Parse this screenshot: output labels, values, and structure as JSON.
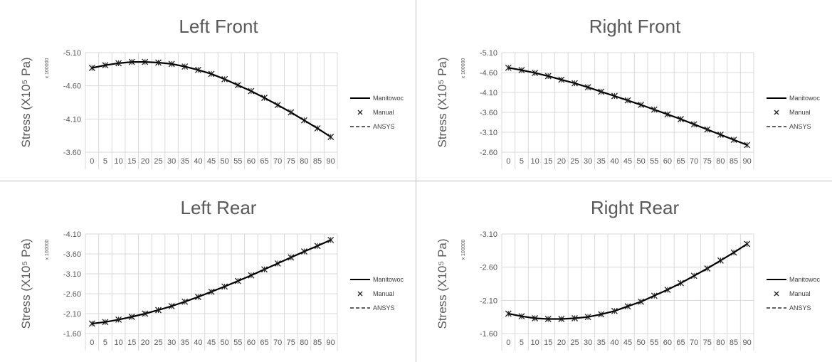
{
  "chart_data": [
    {
      "type": "line",
      "title": "Left Front",
      "ylabel": "Stress (X10⁵ Pa)",
      "display_multiplier": "x 100000",
      "x": [
        0,
        5,
        10,
        15,
        20,
        25,
        30,
        35,
        40,
        45,
        50,
        55,
        60,
        65,
        70,
        75,
        80,
        85,
        90
      ],
      "ylim": [
        -3.6,
        -5.1
      ],
      "yticks": [
        "-5.10",
        "-4.60",
        "-4.10",
        "-3.60"
      ],
      "series": [
        {
          "name": "Manitowoc",
          "style": "solid",
          "values": [
            -4.87,
            -4.91,
            -4.94,
            -4.96,
            -4.96,
            -4.95,
            -4.93,
            -4.89,
            -4.84,
            -4.78,
            -4.7,
            -4.61,
            -4.52,
            -4.42,
            -4.31,
            -4.2,
            -4.08,
            -3.96,
            -3.83
          ]
        },
        {
          "name": "Manual",
          "style": "marker",
          "values": [
            -4.87,
            -4.91,
            -4.94,
            -4.96,
            -4.96,
            -4.95,
            -4.93,
            -4.89,
            -4.84,
            -4.78,
            -4.7,
            -4.61,
            -4.52,
            -4.42,
            -4.31,
            -4.2,
            -4.08,
            -3.96,
            -3.83
          ]
        },
        {
          "name": "ANSYS",
          "style": "dashed",
          "values": [
            -4.87,
            -4.91,
            -4.94,
            -4.96,
            -4.96,
            -4.95,
            -4.93,
            -4.89,
            -4.84,
            -4.78,
            -4.7,
            -4.61,
            -4.52,
            -4.42,
            -4.31,
            -4.2,
            -4.08,
            -3.96,
            -3.83
          ]
        }
      ]
    },
    {
      "type": "line",
      "title": "Right Front",
      "ylabel": "Stress (X10⁵ Pa)",
      "display_multiplier": "x 100000",
      "x": [
        0,
        5,
        10,
        15,
        20,
        25,
        30,
        35,
        40,
        45,
        50,
        55,
        60,
        65,
        70,
        75,
        80,
        85,
        90
      ],
      "ylim": [
        -2.6,
        -5.1
      ],
      "yticks": [
        "-5.10",
        "-4.60",
        "-4.10",
        "-3.60",
        "-3.10",
        "-2.60"
      ],
      "series": [
        {
          "name": "Manitowoc",
          "style": "solid",
          "values": [
            -4.72,
            -4.66,
            -4.59,
            -4.51,
            -4.42,
            -4.33,
            -4.23,
            -4.12,
            -4.01,
            -3.9,
            -3.79,
            -3.67,
            -3.55,
            -3.43,
            -3.3,
            -3.17,
            -3.04,
            -2.91,
            -2.78
          ]
        },
        {
          "name": "Manual",
          "style": "marker",
          "values": [
            -4.72,
            -4.66,
            -4.59,
            -4.51,
            -4.42,
            -4.33,
            -4.23,
            -4.12,
            -4.01,
            -3.9,
            -3.79,
            -3.67,
            -3.55,
            -3.43,
            -3.3,
            -3.17,
            -3.04,
            -2.91,
            -2.78
          ]
        },
        {
          "name": "ANSYS",
          "style": "dashed",
          "values": [
            -4.72,
            -4.66,
            -4.59,
            -4.51,
            -4.42,
            -4.33,
            -4.23,
            -4.12,
            -4.01,
            -3.9,
            -3.79,
            -3.67,
            -3.55,
            -3.43,
            -3.3,
            -3.17,
            -3.04,
            -2.91,
            -2.78
          ]
        }
      ]
    },
    {
      "type": "line",
      "title": "Left Rear",
      "ylabel": "Stress (X10⁵ Pa)",
      "display_multiplier": "x 100000",
      "x": [
        0,
        5,
        10,
        15,
        20,
        25,
        30,
        35,
        40,
        45,
        50,
        55,
        60,
        65,
        70,
        75,
        80,
        85,
        90
      ],
      "ylim": [
        -1.6,
        -4.1
      ],
      "yticks": [
        "-4.10",
        "-3.60",
        "-3.10",
        "-2.60",
        "-2.10",
        "-1.60"
      ],
      "series": [
        {
          "name": "Manitowoc",
          "style": "solid",
          "values": [
            -1.85,
            -1.89,
            -1.95,
            -2.02,
            -2.1,
            -2.19,
            -2.29,
            -2.4,
            -2.52,
            -2.65,
            -2.78,
            -2.92,
            -3.06,
            -3.21,
            -3.36,
            -3.51,
            -3.66,
            -3.8,
            -3.95
          ]
        },
        {
          "name": "Manual",
          "style": "marker",
          "values": [
            -1.85,
            -1.89,
            -1.95,
            -2.02,
            -2.1,
            -2.19,
            -2.29,
            -2.4,
            -2.52,
            -2.65,
            -2.78,
            -2.92,
            -3.06,
            -3.21,
            -3.36,
            -3.51,
            -3.66,
            -3.8,
            -3.95
          ]
        },
        {
          "name": "ANSYS",
          "style": "dashed",
          "values": [
            -1.85,
            -1.89,
            -1.95,
            -2.02,
            -2.1,
            -2.19,
            -2.29,
            -2.4,
            -2.52,
            -2.65,
            -2.78,
            -2.92,
            -3.06,
            -3.21,
            -3.36,
            -3.51,
            -3.66,
            -3.8,
            -3.95
          ]
        }
      ]
    },
    {
      "type": "line",
      "title": "Right Rear",
      "ylabel": "Stress (X10⁵ Pa)",
      "display_multiplier": "x 100000",
      "x": [
        0,
        5,
        10,
        15,
        20,
        25,
        30,
        35,
        40,
        45,
        50,
        55,
        60,
        65,
        70,
        75,
        80,
        85,
        90
      ],
      "ylim": [
        -1.6,
        -3.1
      ],
      "yticks": [
        "-3.10",
        "-2.60",
        "-2.10",
        "-1.60"
      ],
      "series": [
        {
          "name": "Manitowoc",
          "style": "solid",
          "values": [
            -1.9,
            -1.86,
            -1.83,
            -1.82,
            -1.82,
            -1.83,
            -1.85,
            -1.89,
            -1.94,
            -2.01,
            -2.08,
            -2.17,
            -2.26,
            -2.36,
            -2.47,
            -2.58,
            -2.7,
            -2.82,
            -2.95
          ]
        },
        {
          "name": "Manual",
          "style": "marker",
          "values": [
            -1.9,
            -1.86,
            -1.83,
            -1.82,
            -1.82,
            -1.83,
            -1.85,
            -1.89,
            -1.94,
            -2.01,
            -2.08,
            -2.17,
            -2.26,
            -2.36,
            -2.47,
            -2.58,
            -2.7,
            -2.82,
            -2.95
          ]
        },
        {
          "name": "ANSYS",
          "style": "dashed",
          "values": [
            -1.9,
            -1.86,
            -1.83,
            -1.82,
            -1.82,
            -1.83,
            -1.85,
            -1.89,
            -1.94,
            -2.01,
            -2.08,
            -2.17,
            -2.26,
            -2.36,
            -2.47,
            -2.58,
            -2.7,
            -2.82,
            -2.95
          ]
        }
      ]
    }
  ]
}
